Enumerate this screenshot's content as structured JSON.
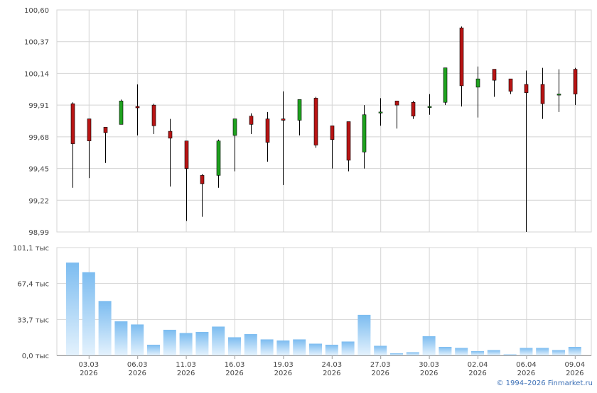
{
  "copyright": "© 1994–2026 Finmarket.ru",
  "colors": {
    "up": "#1fa21f",
    "down": "#b81414",
    "volume_top": "#7cbcf0",
    "volume_bottom": "#e4f2fd",
    "grid": "#d4d4d4",
    "axis_text": "#444444",
    "copyright": "#3b6fb6"
  },
  "chart_data": [
    {
      "type": "candlestick",
      "ylim": [
        98.99,
        100.6
      ],
      "y_ticks": [
        "100,60",
        "100,37",
        "100,14",
        "99,91",
        "99,68",
        "99,45",
        "99,22",
        "98,99"
      ],
      "grid": true,
      "candles": [
        {
          "open": 99.92,
          "high": 99.93,
          "low": 99.31,
          "close": 99.63
        },
        {
          "open": 99.81,
          "high": 99.81,
          "low": 99.38,
          "close": 99.65
        },
        {
          "open": 99.75,
          "high": 99.75,
          "low": 99.49,
          "close": 99.71
        },
        {
          "open": 99.77,
          "high": 99.95,
          "low": 99.77,
          "close": 99.94
        },
        {
          "open": 99.9,
          "high": 100.06,
          "low": 99.69,
          "close": 99.89
        },
        {
          "open": 99.91,
          "high": 99.92,
          "low": 99.7,
          "close": 99.76
        },
        {
          "open": 99.72,
          "high": 99.81,
          "low": 99.32,
          "close": 99.67
        },
        {
          "open": 99.65,
          "high": 99.65,
          "low": 99.07,
          "close": 99.45
        },
        {
          "open": 99.4,
          "high": 99.41,
          "low": 99.1,
          "close": 99.34
        },
        {
          "open": 99.4,
          "high": 99.66,
          "low": 99.31,
          "close": 99.65
        },
        {
          "open": 99.69,
          "high": 99.81,
          "low": 99.43,
          "close": 99.81
        },
        {
          "open": 99.83,
          "high": 99.85,
          "low": 99.7,
          "close": 99.77
        },
        {
          "open": 99.81,
          "high": 99.86,
          "low": 99.5,
          "close": 99.64
        },
        {
          "open": 99.81,
          "high": 100.01,
          "low": 99.33,
          "close": 99.8
        },
        {
          "open": 99.8,
          "high": 99.95,
          "low": 99.69,
          "close": 99.95
        },
        {
          "open": 99.96,
          "high": 99.97,
          "low": 99.6,
          "close": 99.62
        },
        {
          "open": 99.76,
          "high": 99.76,
          "low": 99.45,
          "close": 99.66
        },
        {
          "open": 99.79,
          "high": 99.79,
          "low": 99.43,
          "close": 99.51
        },
        {
          "open": 99.57,
          "high": 99.91,
          "low": 99.45,
          "close": 99.84
        },
        {
          "open": 99.86,
          "high": 99.96,
          "low": 99.76,
          "close": 99.86
        },
        {
          "open": 99.94,
          "high": 99.94,
          "low": 99.74,
          "close": 99.91
        },
        {
          "open": 99.93,
          "high": 99.94,
          "low": 99.81,
          "close": 99.83
        },
        {
          "open": 99.9,
          "high": 99.99,
          "low": 99.84,
          "close": 99.9
        },
        {
          "open": 99.93,
          "high": 100.18,
          "low": 99.91,
          "close": 100.18
        },
        {
          "open": 100.47,
          "high": 100.48,
          "low": 99.9,
          "close": 100.05
        },
        {
          "open": 100.04,
          "high": 100.19,
          "low": 99.82,
          "close": 100.1
        },
        {
          "open": 100.17,
          "high": 100.17,
          "low": 99.97,
          "close": 100.09
        },
        {
          "open": 100.1,
          "high": 100.1,
          "low": 99.99,
          "close": 100.01
        },
        {
          "open": 100.06,
          "high": 100.16,
          "low": 98.99,
          "close": 100.0
        },
        {
          "open": 100.06,
          "high": 100.18,
          "low": 99.81,
          "close": 99.92
        },
        {
          "open": 99.99,
          "high": 100.17,
          "low": 99.86,
          "close": 99.99
        },
        {
          "open": 100.17,
          "high": 100.18,
          "low": 99.91,
          "close": 99.99
        }
      ]
    },
    {
      "type": "bar",
      "ylim": [
        0,
        101.1
      ],
      "y_ticks": [
        "101,1 тыс",
        "67,4 тыс",
        "33,7 тыс",
        "0,0 тыс"
      ],
      "grid": true,
      "values": [
        87,
        78,
        51,
        32,
        29,
        10,
        24,
        21,
        22,
        27,
        17,
        20,
        15,
        14,
        15,
        11,
        10,
        13,
        38,
        9,
        2,
        3,
        18,
        8,
        7,
        4,
        5,
        1,
        7,
        7,
        5,
        8
      ]
    }
  ],
  "x_axis": {
    "labels": [
      {
        "day": "03.03",
        "year": "2026"
      },
      {
        "day": "06.03",
        "year": "2026"
      },
      {
        "day": "11.03",
        "year": "2026"
      },
      {
        "day": "16.03",
        "year": "2026"
      },
      {
        "day": "19.03",
        "year": "2026"
      },
      {
        "day": "24.03",
        "year": "2026"
      },
      {
        "day": "27.03",
        "year": "2026"
      },
      {
        "day": "30.03",
        "year": "2026"
      },
      {
        "day": "02.04",
        "year": "2026"
      },
      {
        "day": "06.04",
        "year": "2026"
      },
      {
        "day": "09.04",
        "year": "2026"
      }
    ]
  }
}
